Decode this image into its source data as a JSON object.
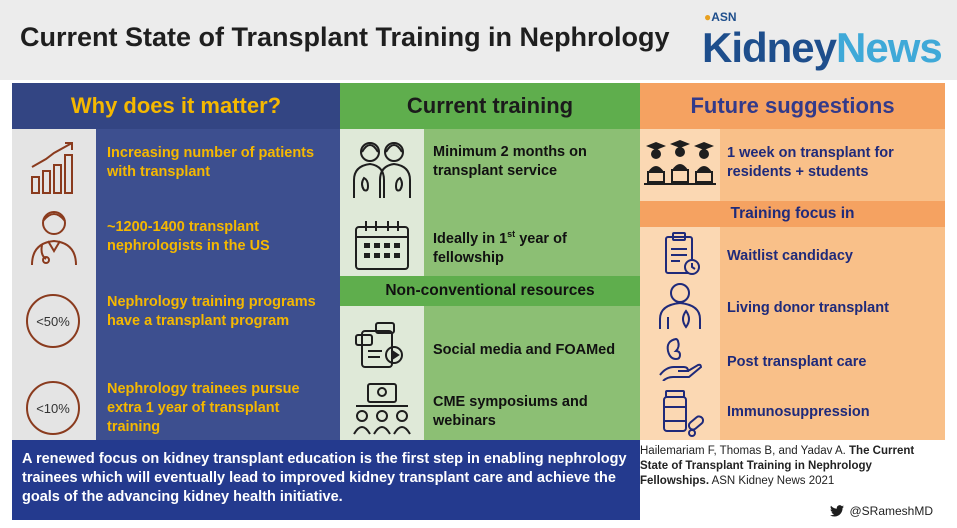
{
  "header": {
    "title": "Current State of Transplant Training in Nephrology",
    "logo_small": "ASN",
    "logo_kidney": "Kidney",
    "logo_news": "News"
  },
  "left": {
    "heading": "Why does it matter?",
    "items": [
      {
        "text": "Increasing number of patients with transplant",
        "icon": "bar-chart-icon"
      },
      {
        "text": "~1200-1400 transplant nephrologists in the US",
        "icon": "doctor-icon"
      },
      {
        "text": "Nephrology training programs have a transplant program",
        "icon": "percent-circle-icon",
        "badge": "<50%"
      },
      {
        "text": "Nephrology trainees pursue extra 1 year of transplant training",
        "icon": "percent-circle-icon",
        "badge": "<10%"
      }
    ]
  },
  "middle": {
    "heading": "Current training",
    "items": [
      {
        "text": "Minimum 2 months on transplant service",
        "icon": "kidney-people-icon"
      },
      {
        "text": "Ideally in",
        "sup": "st",
        "num": "1",
        "text_after": "year of fellowship",
        "icon": "calendar-icon"
      }
    ],
    "subheading": "Non-conventional resources",
    "resources": [
      {
        "text": "Social media and FOAMed",
        "icon": "social-media-icon"
      },
      {
        "text": "CME symposiums and webinars",
        "icon": "webinar-icon"
      }
    ]
  },
  "right": {
    "heading": "Future suggestions",
    "suggestion": {
      "text": "1 week on transplant for residents + students",
      "icon": "students-icon"
    },
    "subheading": "Training focus in",
    "focus": [
      {
        "text": "Waitlist candidacy",
        "icon": "clipboard-icon"
      },
      {
        "text": "Living donor transplant",
        "icon": "donor-icon"
      },
      {
        "text": "Post transplant care",
        "icon": "kidney-hand-icon"
      },
      {
        "text": "Immunosuppression",
        "icon": "pills-icon"
      }
    ]
  },
  "footer": {
    "statement": "A renewed focus on kidney transplant education  is the first step in enabling nephrology trainees which will eventually lead to improved kidney transplant care and achieve the goals of the advancing kidney health initiative.",
    "citation_authors": "Hailemariam F, Thomas B, and Yadav A.",
    "citation_title": "The Current State of Transplant Training in Nephrology Fellowships.",
    "citation_source": "ASN Kidney News 2021",
    "twitter_handle": "@SRameshMD"
  }
}
